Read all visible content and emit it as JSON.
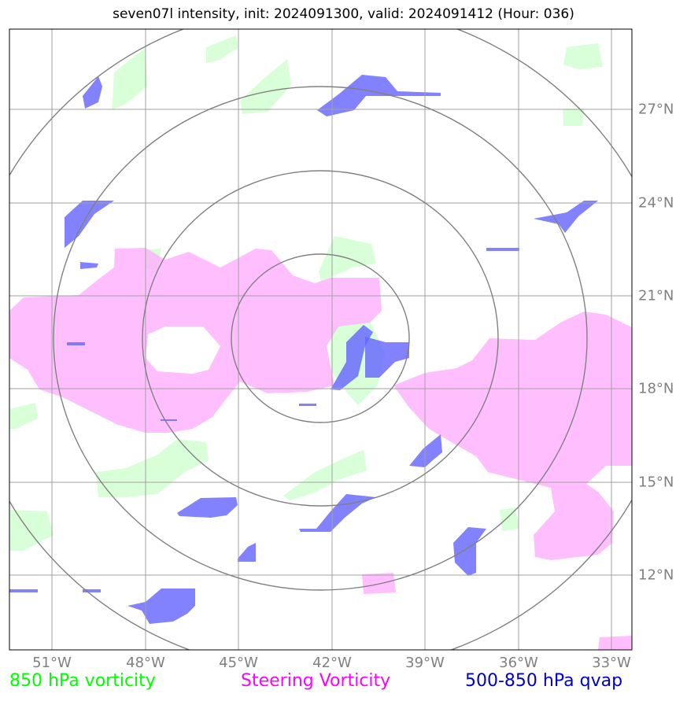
{
  "title": "seven07l intensity, init: 2024091300, valid: 2024091412 (Hour: 036)",
  "x_ticks": [
    "51°W",
    "48°W",
    "45°W",
    "42°W",
    "39°W",
    "36°W",
    "33°W"
  ],
  "y_ticks": [
    "27°N",
    "24°N",
    "21°N",
    "18°N",
    "15°N",
    "12°N"
  ],
  "legend": {
    "vort850": "850 hPa vorticity",
    "steering": "Steering Vorticity",
    "qvap": "500-850 hPa qvap"
  },
  "colors": {
    "vort850": "#ccffcc",
    "steering": "#ffaaff",
    "qvap": "#6666ff",
    "grid": "#a0a0a0",
    "rings": "#808080",
    "tick_text": "#808080",
    "legend_850": "#00ff00",
    "legend_steering": "#ff00ff",
    "legend_qvap": "#0000cc"
  },
  "map": {
    "lon_range": [
      -52.4,
      -32.4
    ],
    "lat_range": [
      9.5,
      29.5
    ],
    "center": {
      "lon": -42.4,
      "lat": 19.6
    },
    "range_rings": 4
  }
}
